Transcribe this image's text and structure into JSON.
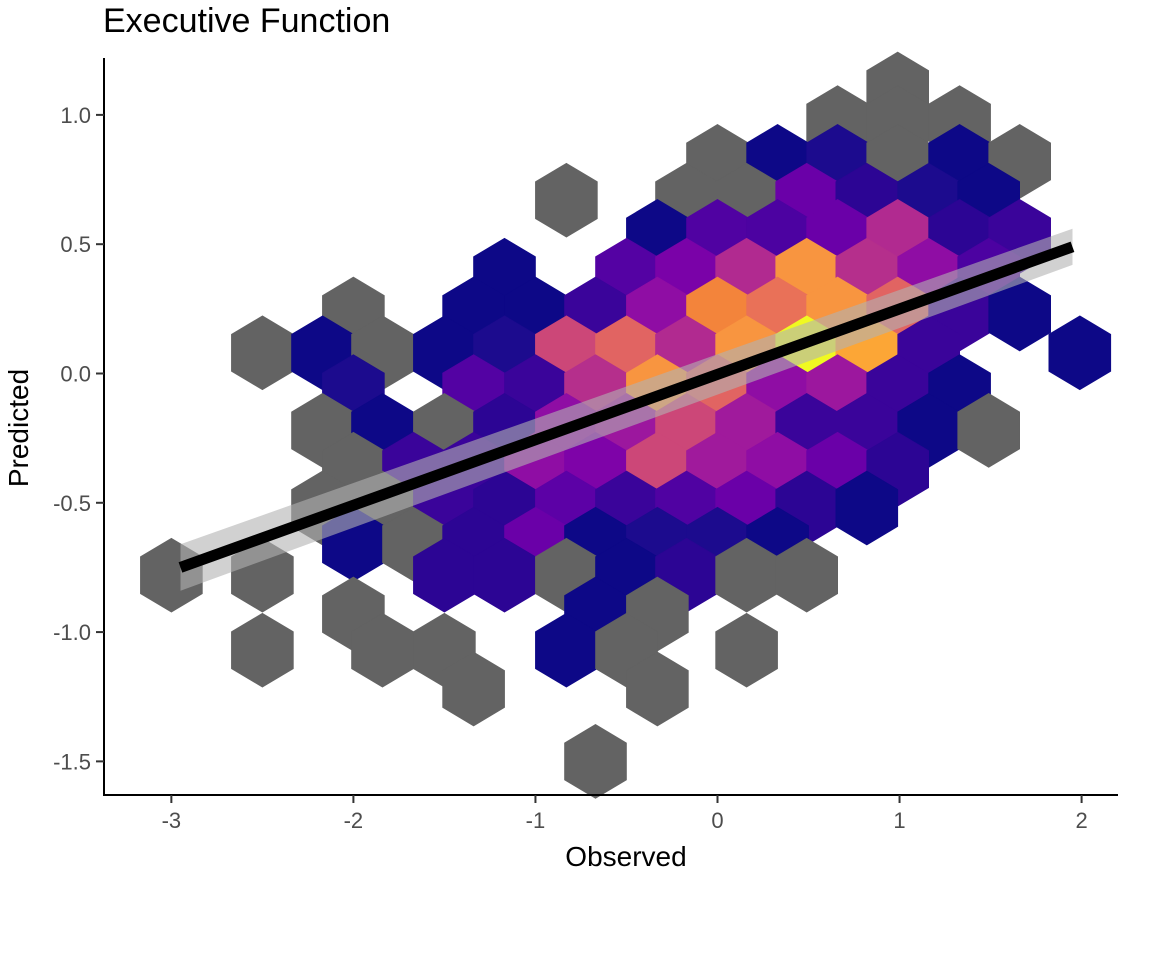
{
  "chart_data": {
    "type": "hexbin",
    "title": "Executive Function",
    "xlabel": "Observed",
    "ylabel": "Predicted",
    "xlim": [
      -3.37,
      2.2
    ],
    "ylim": [
      -1.63,
      1.22
    ],
    "x_ticks": [
      "-3",
      "-2",
      "-1",
      "0",
      "1",
      "2"
    ],
    "x_tick_values": [
      -3,
      -2,
      -1,
      0,
      1,
      2
    ],
    "y_ticks": [
      "1.0",
      "0.5",
      "0.0",
      "-0.5",
      "-1.0",
      "-1.5"
    ],
    "y_tick_values": [
      1.0,
      0.5,
      0.0,
      -0.5,
      -1.0,
      -1.5
    ],
    "grid": false,
    "legend": "none",
    "hex_bins": [
      {
        "x": 0.99,
        "y": 1.1,
        "color": "#636363"
      },
      {
        "x": 0.66,
        "y": 0.97,
        "color": "#636363"
      },
      {
        "x": 0.99,
        "y": 0.97,
        "color": "#636363"
      },
      {
        "x": 1.33,
        "y": 0.97,
        "color": "#636363"
      },
      {
        "x": 0.0,
        "y": 0.82,
        "color": "#636363"
      },
      {
        "x": 0.33,
        "y": 0.82,
        "color": "#0d0887"
      },
      {
        "x": 0.66,
        "y": 0.82,
        "color": "#1c0b8e"
      },
      {
        "x": 0.99,
        "y": 0.82,
        "color": "#636363"
      },
      {
        "x": 1.33,
        "y": 0.82,
        "color": "#0d0887"
      },
      {
        "x": 1.66,
        "y": 0.82,
        "color": "#636363"
      },
      {
        "x": -0.83,
        "y": 0.67,
        "color": "#636363"
      },
      {
        "x": -0.17,
        "y": 0.67,
        "color": "#636363"
      },
      {
        "x": 0.16,
        "y": 0.67,
        "color": "#636363"
      },
      {
        "x": 0.49,
        "y": 0.67,
        "color": "#6a00a8"
      },
      {
        "x": 0.82,
        "y": 0.67,
        "color": "#2c0594"
      },
      {
        "x": 1.16,
        "y": 0.67,
        "color": "#1c0b8e"
      },
      {
        "x": 1.49,
        "y": 0.67,
        "color": "#0d0887"
      },
      {
        "x": -0.33,
        "y": 0.53,
        "color": "#0d0887"
      },
      {
        "x": 0.0,
        "y": 0.53,
        "color": "#5002a2"
      },
      {
        "x": 0.33,
        "y": 0.53,
        "color": "#4c02a1"
      },
      {
        "x": 0.66,
        "y": 0.53,
        "color": "#6a00a8"
      },
      {
        "x": 0.99,
        "y": 0.53,
        "color": "#b12a90"
      },
      {
        "x": 1.33,
        "y": 0.53,
        "color": "#2c0594"
      },
      {
        "x": 1.66,
        "y": 0.53,
        "color": "#3a049a"
      },
      {
        "x": -1.17,
        "y": 0.38,
        "color": "#0d0887"
      },
      {
        "x": -0.5,
        "y": 0.38,
        "color": "#5402a3"
      },
      {
        "x": -0.17,
        "y": 0.38,
        "color": "#7a02a8"
      },
      {
        "x": 0.16,
        "y": 0.38,
        "color": "#b12a90"
      },
      {
        "x": 0.49,
        "y": 0.38,
        "color": "#f89540"
      },
      {
        "x": 0.82,
        "y": 0.38,
        "color": "#b52f8c"
      },
      {
        "x": 1.16,
        "y": 0.38,
        "color": "#8f0da4"
      },
      {
        "x": 1.49,
        "y": 0.38,
        "color": "#4c02a1"
      },
      {
        "x": -2.0,
        "y": 0.23,
        "color": "#636363"
      },
      {
        "x": -1.34,
        "y": 0.23,
        "color": "#0d0887"
      },
      {
        "x": -1.0,
        "y": 0.23,
        "color": "#0d0887"
      },
      {
        "x": -0.67,
        "y": 0.23,
        "color": "#3a049a"
      },
      {
        "x": -0.33,
        "y": 0.23,
        "color": "#8f0da4"
      },
      {
        "x": 0.0,
        "y": 0.23,
        "color": "#f3843b"
      },
      {
        "x": 0.33,
        "y": 0.23,
        "color": "#e97158"
      },
      {
        "x": 0.66,
        "y": 0.23,
        "color": "#f89540"
      },
      {
        "x": 0.99,
        "y": 0.23,
        "color": "#e16462"
      },
      {
        "x": 1.33,
        "y": 0.23,
        "color": "#3a049a"
      },
      {
        "x": 1.66,
        "y": 0.23,
        "color": "#0d0887"
      },
      {
        "x": -2.5,
        "y": 0.08,
        "color": "#636363"
      },
      {
        "x": -2.17,
        "y": 0.08,
        "color": "#0d0887"
      },
      {
        "x": -1.84,
        "y": 0.08,
        "color": "#636363"
      },
      {
        "x": -1.5,
        "y": 0.08,
        "color": "#0d0887"
      },
      {
        "x": -1.17,
        "y": 0.08,
        "color": "#1c0b8e"
      },
      {
        "x": -0.83,
        "y": 0.08,
        "color": "#cc4778"
      },
      {
        "x": -0.5,
        "y": 0.08,
        "color": "#e16462"
      },
      {
        "x": -0.17,
        "y": 0.08,
        "color": "#b12a90"
      },
      {
        "x": 0.16,
        "y": 0.08,
        "color": "#f89540"
      },
      {
        "x": 0.49,
        "y": 0.08,
        "color": "#f0f921"
      },
      {
        "x": 0.82,
        "y": 0.08,
        "color": "#fca636"
      },
      {
        "x": 1.16,
        "y": 0.08,
        "color": "#3a049a"
      },
      {
        "x": 1.99,
        "y": 0.08,
        "color": "#0d0887"
      },
      {
        "x": -2.0,
        "y": -0.07,
        "color": "#1c0b8e"
      },
      {
        "x": -1.34,
        "y": -0.07,
        "color": "#5302a3"
      },
      {
        "x": -1.0,
        "y": -0.07,
        "color": "#3a049a"
      },
      {
        "x": -0.67,
        "y": -0.07,
        "color": "#b52f8c"
      },
      {
        "x": -0.33,
        "y": -0.07,
        "color": "#f89540"
      },
      {
        "x": 0.0,
        "y": -0.07,
        "color": "#e16462"
      },
      {
        "x": 0.33,
        "y": -0.07,
        "color": "#8f0da4"
      },
      {
        "x": 0.66,
        "y": -0.07,
        "color": "#9c179e"
      },
      {
        "x": 0.99,
        "y": -0.07,
        "color": "#3a049a"
      },
      {
        "x": 1.33,
        "y": -0.07,
        "color": "#0d0887"
      },
      {
        "x": -2.17,
        "y": -0.22,
        "color": "#636363"
      },
      {
        "x": -1.84,
        "y": -0.22,
        "color": "#0d0887"
      },
      {
        "x": -1.5,
        "y": -0.22,
        "color": "#636363"
      },
      {
        "x": -1.17,
        "y": -0.22,
        "color": "#2c0594"
      },
      {
        "x": -0.83,
        "y": -0.22,
        "color": "#8f0da4"
      },
      {
        "x": -0.5,
        "y": -0.22,
        "color": "#9c179e"
      },
      {
        "x": -0.17,
        "y": -0.22,
        "color": "#cc4778"
      },
      {
        "x": 0.16,
        "y": -0.22,
        "color": "#a01a9c"
      },
      {
        "x": 0.49,
        "y": -0.22,
        "color": "#3a049a"
      },
      {
        "x": 0.82,
        "y": -0.22,
        "color": "#3a049a"
      },
      {
        "x": 1.16,
        "y": -0.22,
        "color": "#0d0887"
      },
      {
        "x": 1.49,
        "y": -0.22,
        "color": "#636363"
      },
      {
        "x": -2.0,
        "y": -0.37,
        "color": "#636363"
      },
      {
        "x": -1.67,
        "y": -0.37,
        "color": "#3a049a"
      },
      {
        "x": -1.34,
        "y": -0.37,
        "color": "#3a049a"
      },
      {
        "x": -1.0,
        "y": -0.37,
        "color": "#8f0da4"
      },
      {
        "x": -0.67,
        "y": -0.37,
        "color": "#7e03a8"
      },
      {
        "x": -0.33,
        "y": -0.37,
        "color": "#cc4778"
      },
      {
        "x": 0.0,
        "y": -0.37,
        "color": "#a01a9c"
      },
      {
        "x": 0.33,
        "y": -0.37,
        "color": "#8f0da4"
      },
      {
        "x": 0.66,
        "y": -0.37,
        "color": "#6a00a8"
      },
      {
        "x": 0.99,
        "y": -0.37,
        "color": "#2c0594"
      },
      {
        "x": -2.17,
        "y": -0.52,
        "color": "#636363"
      },
      {
        "x": -1.84,
        "y": -0.52,
        "color": "#636363"
      },
      {
        "x": -1.5,
        "y": -0.52,
        "color": "#3a049a"
      },
      {
        "x": -1.17,
        "y": -0.52,
        "color": "#2c0594"
      },
      {
        "x": -0.83,
        "y": -0.52,
        "color": "#5c01a6"
      },
      {
        "x": -0.5,
        "y": -0.52,
        "color": "#3a049a"
      },
      {
        "x": -0.17,
        "y": -0.52,
        "color": "#5002a2"
      },
      {
        "x": 0.16,
        "y": -0.52,
        "color": "#6a00a8"
      },
      {
        "x": 0.49,
        "y": -0.52,
        "color": "#2c0594"
      },
      {
        "x": 0.82,
        "y": -0.52,
        "color": "#0d0887"
      },
      {
        "x": -2.0,
        "y": -0.66,
        "color": "#0d0887"
      },
      {
        "x": -1.67,
        "y": -0.66,
        "color": "#636363"
      },
      {
        "x": -1.34,
        "y": -0.66,
        "color": "#2c0594"
      },
      {
        "x": -1.0,
        "y": -0.66,
        "color": "#6a00a8"
      },
      {
        "x": -0.67,
        "y": -0.66,
        "color": "#0d0887"
      },
      {
        "x": -0.33,
        "y": -0.66,
        "color": "#1c0b8e"
      },
      {
        "x": 0.0,
        "y": -0.66,
        "color": "#1c0b8e"
      },
      {
        "x": 0.33,
        "y": -0.66,
        "color": "#0d0887"
      },
      {
        "x": -3.0,
        "y": -0.78,
        "color": "#636363"
      },
      {
        "x": -2.5,
        "y": -0.78,
        "color": "#636363"
      },
      {
        "x": -1.5,
        "y": -0.78,
        "color": "#2c0594"
      },
      {
        "x": -1.17,
        "y": -0.78,
        "color": "#2c0594"
      },
      {
        "x": -0.83,
        "y": -0.78,
        "color": "#636363"
      },
      {
        "x": -0.5,
        "y": -0.78,
        "color": "#0d0887"
      },
      {
        "x": -0.17,
        "y": -0.78,
        "color": "#2c0594"
      },
      {
        "x": 0.16,
        "y": -0.78,
        "color": "#636363"
      },
      {
        "x": 0.49,
        "y": -0.78,
        "color": "#636363"
      },
      {
        "x": -2.0,
        "y": -0.93,
        "color": "#636363"
      },
      {
        "x": -0.67,
        "y": -0.93,
        "color": "#0d0887"
      },
      {
        "x": -0.33,
        "y": -0.93,
        "color": "#636363"
      },
      {
        "x": -2.5,
        "y": -1.07,
        "color": "#636363"
      },
      {
        "x": -1.84,
        "y": -1.07,
        "color": "#636363"
      },
      {
        "x": -1.5,
        "y": -1.07,
        "color": "#636363"
      },
      {
        "x": -0.83,
        "y": -1.07,
        "color": "#0d0887"
      },
      {
        "x": -0.5,
        "y": -1.07,
        "color": "#636363"
      },
      {
        "x": 0.16,
        "y": -1.07,
        "color": "#636363"
      },
      {
        "x": -1.34,
        "y": -1.22,
        "color": "#636363"
      },
      {
        "x": -0.33,
        "y": -1.22,
        "color": "#636363"
      },
      {
        "x": -0.67,
        "y": -1.5,
        "color": "#636363"
      }
    ],
    "trend_line": {
      "x": [
        -2.95,
        1.95
      ],
      "y": [
        -0.75,
        0.49
      ],
      "ci_halfwidth": [
        0.09,
        0.07
      ],
      "line_color": "#000000",
      "ci_color": "#b3b3b3"
    }
  }
}
